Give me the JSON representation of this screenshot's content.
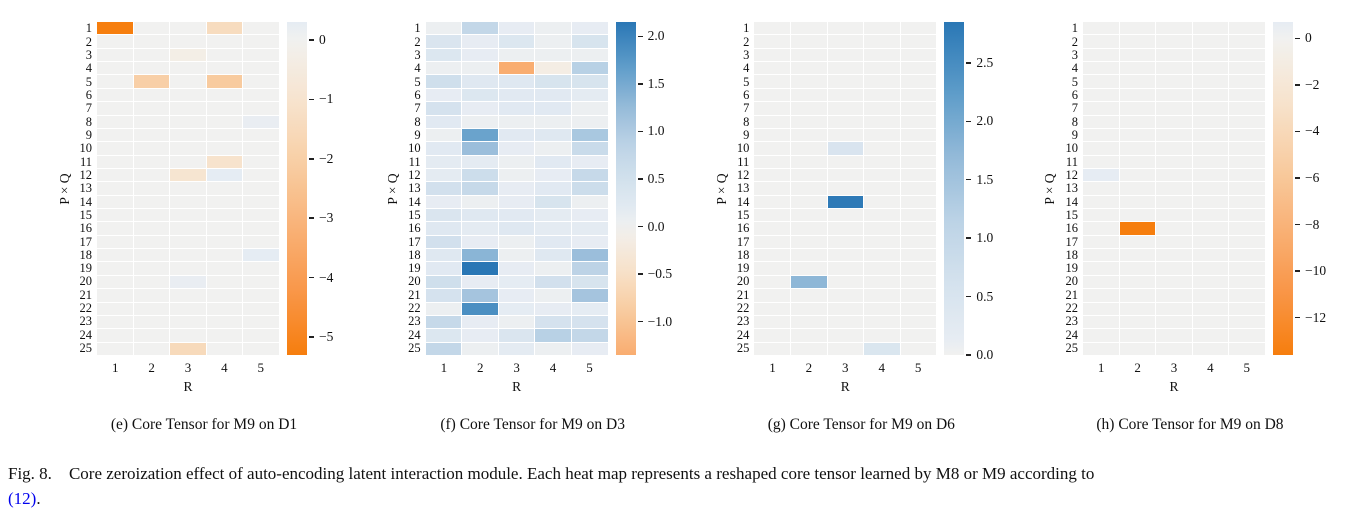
{
  "figure": {
    "fig_label": "Fig. 8.",
    "caption_text": "Core zeroization effect of auto-encoding latent interaction module. Each heat map represents a reshaped core tensor learned by M8 or M9 according to",
    "citation": "(12)",
    "caption_suffix": "."
  },
  "colors": {
    "deep_blue": "#2a77b5",
    "deep_orange": "#f67e0e",
    "near_zero": "#f1f1f0",
    "text": "#111111",
    "link_blue": "#0000ee"
  },
  "chart_data": [
    {
      "id": "e",
      "type": "heatmap",
      "caption": "(e) Core Tensor for M9 on D1",
      "xlabel": "R",
      "ylabel": "P × Q",
      "x_ticks": [
        "1",
        "2",
        "3",
        "4",
        "5"
      ],
      "y_ticks": [
        "1",
        "2",
        "3",
        "4",
        "5",
        "6",
        "7",
        "8",
        "9",
        "10",
        "11",
        "12",
        "13",
        "14",
        "15",
        "16",
        "17",
        "18",
        "19",
        "20",
        "21",
        "22",
        "23",
        "24",
        "25"
      ],
      "vmin": -5.3,
      "vmax": 0.3,
      "colorbar_ticks": [
        {
          "value": 0,
          "label": "0"
        },
        {
          "value": -1,
          "label": "−1"
        },
        {
          "value": -2,
          "label": "−2"
        },
        {
          "value": -3,
          "label": "−3"
        },
        {
          "value": -4,
          "label": "−4"
        },
        {
          "value": -5,
          "label": "−5"
        }
      ],
      "values": [
        [
          -5.3,
          0,
          0,
          -1.4,
          0
        ],
        [
          0,
          0,
          0,
          0,
          0
        ],
        [
          0,
          0,
          -0.3,
          0,
          0
        ],
        [
          0,
          0,
          0,
          0,
          0
        ],
        [
          0,
          -2.0,
          0,
          -2.2,
          0
        ],
        [
          0,
          0,
          0,
          0,
          0
        ],
        [
          0,
          0,
          0,
          0,
          0
        ],
        [
          0,
          0,
          0,
          0,
          0.2
        ],
        [
          0,
          0,
          0,
          0,
          0
        ],
        [
          0,
          0,
          0,
          0,
          0
        ],
        [
          0,
          0,
          0,
          -1.05,
          0
        ],
        [
          0,
          0,
          -0.95,
          0.3,
          0
        ],
        [
          0,
          0,
          0,
          0,
          0
        ],
        [
          0,
          0,
          0,
          0,
          0
        ],
        [
          0,
          0,
          0,
          0,
          0
        ],
        [
          0,
          0,
          0,
          0,
          0
        ],
        [
          0,
          0,
          0,
          0,
          0
        ],
        [
          0,
          0,
          0,
          0,
          0.3
        ],
        [
          0,
          0,
          0,
          0,
          0
        ],
        [
          0,
          0,
          0.2,
          0,
          0
        ],
        [
          0,
          0,
          0,
          0,
          0
        ],
        [
          0,
          0,
          0,
          0,
          0
        ],
        [
          0,
          0,
          0,
          0,
          0
        ],
        [
          0,
          0,
          0,
          0,
          0
        ],
        [
          0,
          0,
          -1.5,
          0,
          0
        ]
      ]
    },
    {
      "id": "f",
      "type": "heatmap",
      "caption": "(f) Core Tensor for M9 on D3",
      "xlabel": "R",
      "ylabel": "P × Q",
      "x_ticks": [
        "1",
        "2",
        "3",
        "4",
        "5"
      ],
      "y_ticks": [
        "1",
        "2",
        "3",
        "4",
        "5",
        "6",
        "7",
        "8",
        "9",
        "10",
        "11",
        "12",
        "13",
        "14",
        "15",
        "16",
        "17",
        "18",
        "19",
        "20",
        "21",
        "22",
        "23",
        "24",
        "25"
      ],
      "vmin": -1.35,
      "vmax": 2.15,
      "colorbar_ticks": [
        {
          "value": 2.0,
          "label": "2.0"
        },
        {
          "value": 1.5,
          "label": "1.5"
        },
        {
          "value": 1.0,
          "label": "1.0"
        },
        {
          "value": 0.5,
          "label": "0.5"
        },
        {
          "value": 0.0,
          "label": "0.0"
        },
        {
          "value": -0.5,
          "label": "−0.5"
        },
        {
          "value": -1.0,
          "label": "−1.0"
        }
      ],
      "values": [
        [
          0.05,
          0.75,
          0.1,
          0.05,
          0.1
        ],
        [
          0.35,
          0.1,
          0.3,
          0.05,
          0.4
        ],
        [
          0.3,
          0.1,
          0.05,
          0.05,
          0.05
        ],
        [
          0.05,
          0.05,
          -1.35,
          -0.15,
          0.9
        ],
        [
          0.55,
          0.25,
          0.25,
          0.4,
          0.4
        ],
        [
          0.1,
          0.3,
          0.2,
          0.2,
          0.15
        ],
        [
          0.45,
          0.1,
          0.2,
          0.2,
          0.05
        ],
        [
          0.2,
          0.05,
          0.05,
          0.05,
          0.05
        ],
        [
          0.05,
          1.6,
          0.2,
          0.25,
          1.05
        ],
        [
          0.2,
          1.2,
          0.1,
          0.05,
          0.65
        ],
        [
          0.15,
          0.15,
          0.05,
          0.2,
          0.1
        ],
        [
          0.15,
          0.6,
          0.05,
          0.1,
          0.7
        ],
        [
          0.5,
          0.7,
          0.1,
          0.2,
          0.6
        ],
        [
          0.1,
          0.05,
          0.1,
          0.4,
          0.05
        ],
        [
          0.35,
          0.25,
          0.2,
          0.15,
          0.1
        ],
        [
          0.25,
          0.15,
          0.25,
          0.15,
          0.15
        ],
        [
          0.5,
          0.1,
          0.05,
          0.2,
          0.1
        ],
        [
          0.25,
          1.35,
          0.05,
          0.25,
          1.2
        ],
        [
          0.2,
          2.15,
          0.1,
          0.05,
          0.85
        ],
        [
          0.55,
          0.1,
          0.12,
          0.5,
          0.4
        ],
        [
          0.45,
          1.1,
          0.1,
          0.05,
          1.1
        ],
        [
          0.05,
          1.85,
          0.12,
          0.1,
          0.12
        ],
        [
          0.7,
          0.1,
          0.05,
          0.45,
          0.45
        ],
        [
          0.3,
          0.1,
          0.35,
          0.9,
          0.75
        ],
        [
          0.75,
          0.05,
          0.15,
          0.05,
          0.1
        ]
      ]
    },
    {
      "id": "g",
      "type": "heatmap",
      "caption": "(g) Core Tensor for M9 on D6",
      "xlabel": "R",
      "ylabel": "P × Q",
      "x_ticks": [
        "1",
        "2",
        "3",
        "4",
        "5"
      ],
      "y_ticks": [
        "1",
        "2",
        "3",
        "4",
        "5",
        "6",
        "7",
        "8",
        "9",
        "10",
        "11",
        "12",
        "13",
        "14",
        "15",
        "16",
        "17",
        "18",
        "19",
        "20",
        "21",
        "22",
        "23",
        "24",
        "25"
      ],
      "vmin": 0.0,
      "vmax": 2.85,
      "colorbar_ticks": [
        {
          "value": 2.5,
          "label": "2.5"
        },
        {
          "value": 2.0,
          "label": "2.0"
        },
        {
          "value": 1.5,
          "label": "1.5"
        },
        {
          "value": 1.0,
          "label": "1.0"
        },
        {
          "value": 0.5,
          "label": "0.5"
        },
        {
          "value": 0.0,
          "label": "0.0"
        }
      ],
      "values": [
        [
          0,
          0,
          0,
          0,
          0
        ],
        [
          0,
          0,
          0,
          0,
          0
        ],
        [
          0,
          0,
          0,
          0,
          0
        ],
        [
          0,
          0,
          0,
          0,
          0
        ],
        [
          0,
          0,
          0,
          0,
          0
        ],
        [
          0,
          0,
          0,
          0,
          0
        ],
        [
          0,
          0,
          0,
          0,
          0
        ],
        [
          0,
          0,
          0,
          0,
          0
        ],
        [
          0,
          0,
          0,
          0,
          0
        ],
        [
          0,
          0,
          0.5,
          0,
          0
        ],
        [
          0,
          0,
          0,
          0,
          0
        ],
        [
          0,
          0,
          0,
          0,
          0
        ],
        [
          0,
          0,
          0,
          0,
          0
        ],
        [
          0,
          0,
          2.8,
          0,
          0
        ],
        [
          0,
          0,
          0,
          0,
          0
        ],
        [
          0,
          0,
          0,
          0,
          0
        ],
        [
          0,
          0,
          0,
          0,
          0
        ],
        [
          0,
          0,
          0,
          0,
          0
        ],
        [
          0,
          0,
          0,
          0,
          0
        ],
        [
          0,
          1.75,
          0,
          0,
          0
        ],
        [
          0,
          0,
          0,
          0,
          0
        ],
        [
          0,
          0,
          0,
          0,
          0
        ],
        [
          0,
          0,
          0,
          0,
          0
        ],
        [
          0,
          0,
          0,
          0,
          0
        ],
        [
          0,
          0,
          0,
          0.45,
          0
        ]
      ]
    },
    {
      "id": "h",
      "type": "heatmap",
      "caption": "(h) Core Tensor for M9 on D8",
      "xlabel": "R",
      "ylabel": "P × Q",
      "x_ticks": [
        "1",
        "2",
        "3",
        "4",
        "5"
      ],
      "y_ticks": [
        "1",
        "2",
        "3",
        "4",
        "5",
        "6",
        "7",
        "8",
        "9",
        "10",
        "11",
        "12",
        "13",
        "14",
        "15",
        "16",
        "17",
        "18",
        "19",
        "20",
        "21",
        "22",
        "23",
        "24",
        "25"
      ],
      "vmin": -13.6,
      "vmax": 0.7,
      "colorbar_ticks": [
        {
          "value": 0,
          "label": "0"
        },
        {
          "value": -2,
          "label": "−2"
        },
        {
          "value": -4,
          "label": "−4"
        },
        {
          "value": -6,
          "label": "−6"
        },
        {
          "value": -8,
          "label": "−8"
        },
        {
          "value": -10,
          "label": "−10"
        },
        {
          "value": -12,
          "label": "−12"
        }
      ],
      "values": [
        [
          0,
          0,
          0,
          0,
          0
        ],
        [
          0,
          0,
          0,
          0,
          0
        ],
        [
          0,
          0,
          0,
          0,
          0
        ],
        [
          0,
          0,
          0,
          0,
          0
        ],
        [
          0,
          0,
          0,
          0,
          0
        ],
        [
          0,
          0,
          0,
          0,
          0
        ],
        [
          0,
          0,
          0,
          0,
          0
        ],
        [
          0,
          0,
          0,
          0,
          0
        ],
        [
          0,
          0,
          0,
          0,
          0
        ],
        [
          0,
          0,
          0,
          0,
          0
        ],
        [
          0,
          0,
          0,
          0,
          0
        ],
        [
          0.7,
          0,
          0,
          0,
          0
        ],
        [
          0,
          0,
          0,
          0,
          0
        ],
        [
          0,
          0,
          0,
          0,
          0
        ],
        [
          0,
          0,
          0,
          0,
          0
        ],
        [
          0,
          -13.6,
          0,
          0,
          0
        ],
        [
          0,
          0,
          0,
          0,
          0
        ],
        [
          0,
          0,
          0,
          0,
          0
        ],
        [
          0,
          0,
          0,
          0,
          0
        ],
        [
          0,
          0,
          0,
          0,
          0
        ],
        [
          0,
          0,
          0,
          0,
          0
        ],
        [
          0,
          0,
          0,
          0,
          0
        ],
        [
          0,
          0,
          0,
          0,
          0
        ],
        [
          0,
          0,
          0,
          0,
          0
        ],
        [
          0,
          0,
          0,
          0,
          0
        ]
      ]
    }
  ]
}
